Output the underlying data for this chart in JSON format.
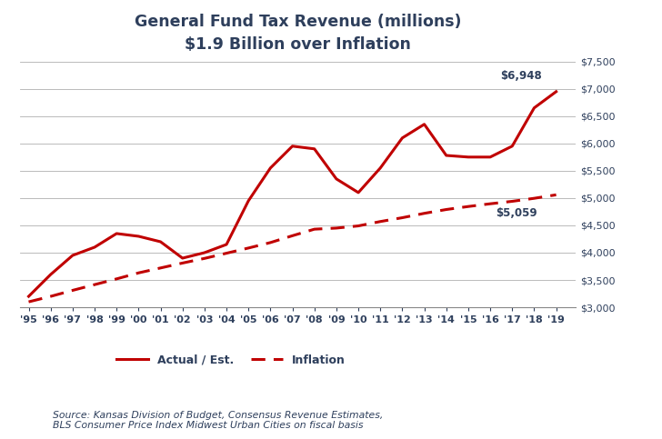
{
  "title_line1": "General Fund Tax Revenue (millions)",
  "title_line2": "$1.9 Billion over Inflation",
  "years": [
    1995,
    1996,
    1997,
    1998,
    1999,
    2000,
    2001,
    2002,
    2003,
    2004,
    2005,
    2006,
    2007,
    2008,
    2009,
    2010,
    2011,
    2012,
    2013,
    2014,
    2015,
    2016,
    2017,
    2018,
    2019
  ],
  "year_labels": [
    "'95",
    "'96",
    "'97",
    "'98",
    "'99",
    "'00",
    "'01",
    "'02",
    "'03",
    "'04",
    "'05",
    "'06",
    "'07",
    "'08",
    "'09",
    "'10",
    "'11",
    "'12",
    "'13",
    "'14",
    "'15",
    "'16",
    "'17",
    "'18",
    "'19"
  ],
  "actual": [
    3200,
    3600,
    3950,
    4100,
    4350,
    4300,
    4200,
    3900,
    4000,
    4150,
    4950,
    5550,
    5950,
    5900,
    5350,
    5100,
    5550,
    6100,
    6350,
    5780,
    5750,
    5750,
    5950,
    6650,
    6948
  ],
  "inflation": [
    3100,
    3200,
    3310,
    3415,
    3520,
    3630,
    3720,
    3810,
    3895,
    3990,
    4085,
    4185,
    4310,
    4430,
    4450,
    4490,
    4570,
    4640,
    4720,
    4790,
    4845,
    4895,
    4940,
    4995,
    5059
  ],
  "actual_color": "#c00000",
  "inflation_color": "#c00000",
  "annotation_actual": "$6,948",
  "annotation_inflation": "$5,059",
  "ylim_min": 3000,
  "ylim_max": 7500,
  "yticks": [
    3000,
    3500,
    4000,
    4500,
    5000,
    5500,
    6000,
    6500,
    7000,
    7500
  ],
  "source_text": "Source: Kansas Division of Budget, Consensus Revenue Estimates,\nBLS Consumer Price Index Midwest Urban Cities on fiscal basis",
  "background_color": "#ffffff",
  "title_color": "#2e3f5c",
  "axis_color": "#2e3f5c",
  "tick_color": "#2e3f5c",
  "grid_color": "#b0b0b0",
  "legend_actual": "Actual / Est.",
  "legend_inflation": "Inflation"
}
